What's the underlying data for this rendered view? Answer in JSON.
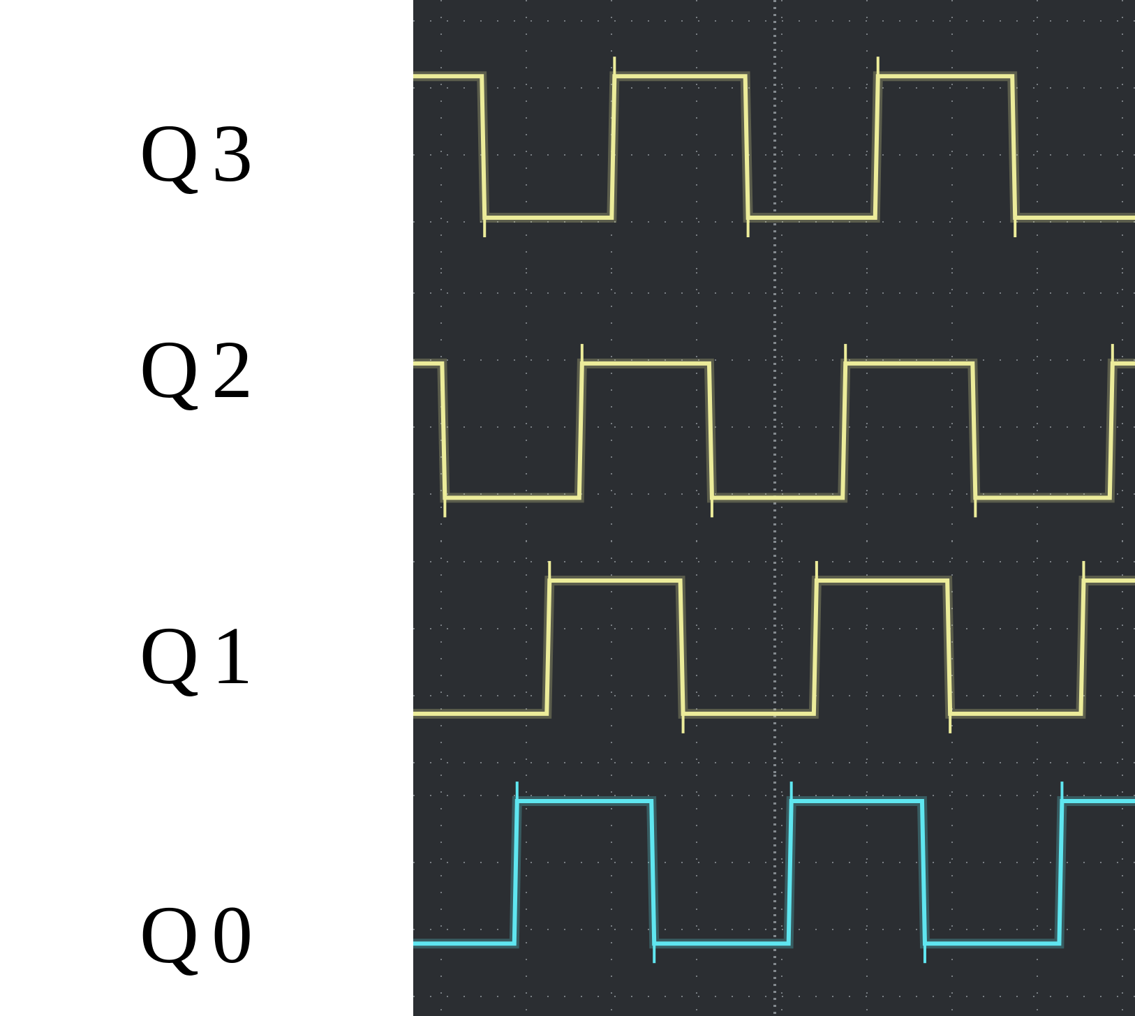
{
  "labels": [
    "Q3",
    "Q2",
    "Q1",
    "Q0"
  ],
  "colors": {
    "background": "#ffffff",
    "scope_bg": "#2b2e32",
    "grid_dot": "#9aa0a6",
    "trace_yellow": "#ecec9a",
    "trace_cyan": "#5fe6f0"
  },
  "traces": [
    {
      "name": "Q3",
      "color_key": "trace_yellow",
      "edges": [
        0.095,
        0.275,
        0.46,
        0.64,
        0.83
      ],
      "start_high": true
    },
    {
      "name": "Q2",
      "color_key": "trace_yellow",
      "edges": [
        0.04,
        0.23,
        0.41,
        0.595,
        0.775,
        0.965
      ],
      "start_high": true
    },
    {
      "name": "Q1",
      "color_key": "trace_yellow",
      "edges": [
        0.185,
        0.37,
        0.555,
        0.74,
        0.925
      ],
      "start_high": false
    },
    {
      "name": "Q0",
      "color_key": "trace_cyan",
      "edges": [
        0.14,
        0.33,
        0.52,
        0.705,
        0.895
      ],
      "start_high": false
    }
  ]
}
